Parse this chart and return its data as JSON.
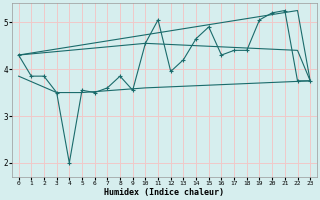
{
  "xlabel": "Humidex (Indice chaleur)",
  "bg_color": "#d6eeee",
  "grid_color": "#f0c8c8",
  "line_color": "#1a6b6b",
  "xlim": [
    -0.5,
    23.5
  ],
  "ylim": [
    1.7,
    5.4
  ],
  "yticks": [
    2,
    3,
    4,
    5
  ],
  "xticks": [
    0,
    1,
    2,
    3,
    4,
    5,
    6,
    7,
    8,
    9,
    10,
    11,
    12,
    13,
    14,
    15,
    16,
    17,
    18,
    19,
    20,
    21,
    22,
    23
  ],
  "line_zigzag": {
    "x": [
      0,
      1,
      2,
      3,
      4,
      5,
      6,
      7,
      8,
      9,
      10,
      11,
      12,
      13,
      14,
      15,
      16,
      17,
      18,
      19,
      20,
      21,
      22,
      23
    ],
    "y": [
      4.3,
      3.85,
      3.85,
      3.5,
      2.0,
      3.55,
      3.5,
      3.6,
      3.85,
      3.55,
      4.55,
      5.05,
      3.95,
      4.2,
      4.65,
      4.9,
      4.3,
      4.4,
      4.4,
      5.05,
      5.2,
      5.25,
      3.75,
      3.75
    ]
  },
  "line_upper": {
    "x": [
      0,
      22,
      23
    ],
    "y": [
      4.3,
      5.25,
      3.75
    ]
  },
  "line_mid1": {
    "x": [
      0,
      10,
      22,
      23
    ],
    "y": [
      4.3,
      4.55,
      4.4,
      3.75
    ]
  },
  "line_flat": {
    "x": [
      0,
      3,
      5,
      10,
      23
    ],
    "y": [
      3.85,
      3.5,
      3.5,
      3.6,
      3.75
    ]
  },
  "font_family": "monospace"
}
